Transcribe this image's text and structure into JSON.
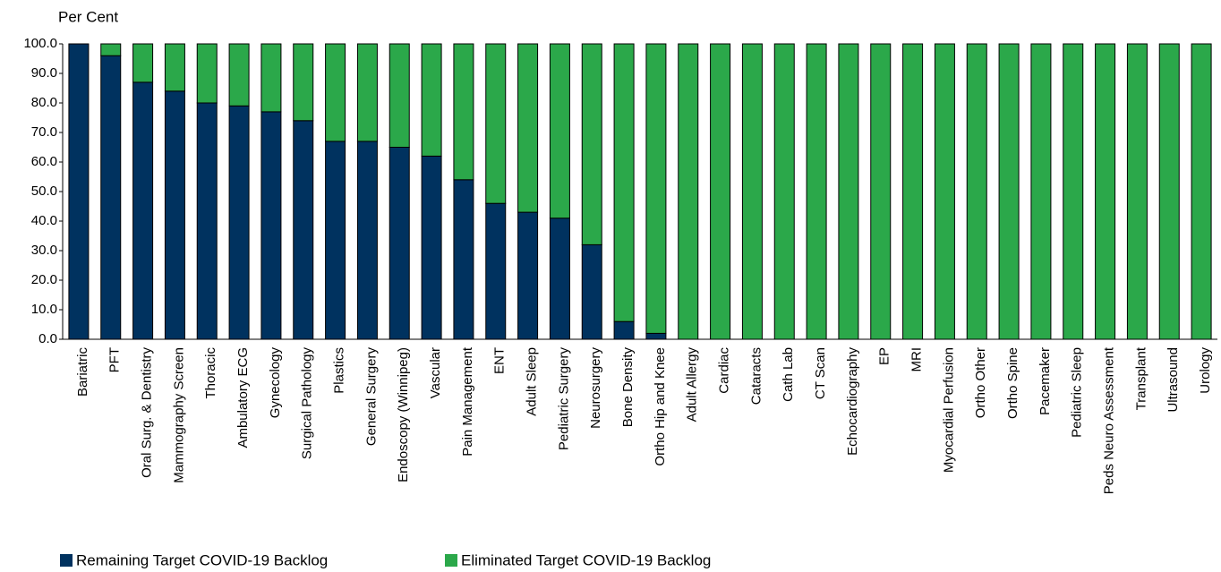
{
  "chart_data": {
    "type": "stacked_bar",
    "y_label": "Per Cent",
    "categories": [
      "Bariatric",
      "PFT",
      "Oral Surg. & Dentistry",
      "Mammography Screen",
      "Thoracic",
      "Ambulatory ECG",
      "Gynecology",
      "Surgical Pathology",
      "Plastics",
      "General Surgery",
      "Endoscopy (Winnipeg)",
      "Vascular",
      "Pain Management",
      "ENT",
      "Adult Sleep",
      "Pediatric Surgery",
      "Neurosurgery",
      "Bone Density",
      "Ortho Hip and Knee",
      "Adult Allergy",
      "Cardiac",
      "Cataracts",
      "Cath Lab",
      "CT Scan",
      "Echocardiography",
      "EP",
      "MRI",
      "Myocardial Perfusion",
      "Ortho Other",
      "Ortho Spine",
      "Pacemaker",
      "Pediatric Sleep",
      "Peds Neuro Assessment",
      "Transplant",
      "Ultrasound",
      "Urology"
    ],
    "series": [
      {
        "name": "Remaining Target COVID-19 Backlog",
        "color": "#00325f",
        "values": [
          100,
          96,
          87,
          84,
          80,
          79,
          77,
          74,
          67,
          67,
          65,
          62,
          54,
          46,
          43,
          41,
          32,
          6,
          2,
          0,
          0,
          0,
          0,
          0,
          0,
          0,
          0,
          0,
          0,
          0,
          0,
          0,
          0,
          0,
          0,
          0
        ]
      },
      {
        "name": "Eliminated Target COVID-19 Backlog",
        "color": "#2ba84a",
        "values": [
          0,
          4,
          13,
          16,
          20,
          21,
          23,
          26,
          33,
          33,
          35,
          38,
          46,
          54,
          57,
          59,
          68,
          94,
          98,
          100,
          100,
          100,
          100,
          100,
          100,
          100,
          100,
          100,
          100,
          100,
          100,
          100,
          100,
          100,
          100,
          100
        ]
      }
    ],
    "ylim": [
      0,
      100
    ],
    "yticks": [
      {
        "value": 0,
        "label": "0.0"
      },
      {
        "value": 10,
        "label": "10.0"
      },
      {
        "value": 20,
        "label": "20.0"
      },
      {
        "value": 30,
        "label": "30.0"
      },
      {
        "value": 40,
        "label": "40.0"
      },
      {
        "value": 50,
        "label": "50.0"
      },
      {
        "value": 60,
        "label": "60.0"
      },
      {
        "value": 70,
        "label": "70.0"
      },
      {
        "value": 80,
        "label": "80.0"
      },
      {
        "value": 90,
        "label": "90.0"
      },
      {
        "value": 100,
        "label": "100.0"
      }
    ],
    "grid": false,
    "legend": "bottom"
  }
}
